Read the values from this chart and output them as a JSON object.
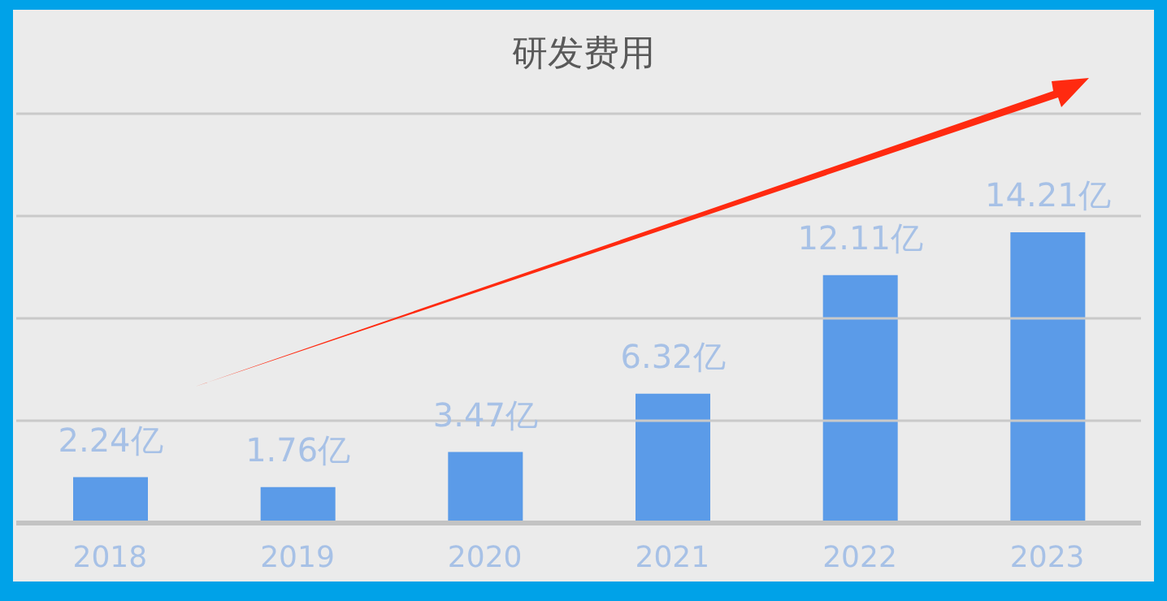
{
  "chart_data": {
    "type": "bar",
    "title": "研发费用",
    "categories": [
      "2018",
      "2019",
      "2020",
      "2021",
      "2022",
      "2023"
    ],
    "values": [
      2.24,
      1.76,
      3.47,
      6.32,
      12.11,
      14.21
    ],
    "value_labels": [
      "2.24亿",
      "1.76亿",
      "3.47亿",
      "6.32亿",
      "12.11亿",
      "14.21亿"
    ],
    "color": "#5b9be8",
    "ylim": [
      0,
      20
    ],
    "yticks": [
      {
        "value": 0,
        "label": null
      },
      {
        "value": 5,
        "label": null
      },
      {
        "value": 10,
        "label": null
      },
      {
        "value": 15,
        "label": null
      },
      {
        "value": 20,
        "label": null
      }
    ],
    "tick_labels": "x",
    "grid": "y",
    "legend": false
  }
}
